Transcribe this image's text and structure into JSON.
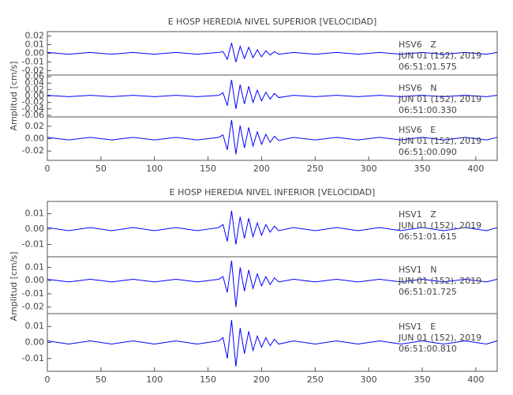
{
  "chart_data": [
    {
      "type": "line",
      "title": "E HOSP HEREDIA NIVEL SUPERIOR [VELOCIDAD]",
      "ylabel": "Amplitud [cm/s]",
      "xlim": [
        0,
        420
      ],
      "xticks": [
        0,
        50,
        100,
        150,
        200,
        250,
        300,
        350,
        400
      ],
      "x": [
        0,
        20,
        40,
        60,
        80,
        100,
        120,
        140,
        160,
        164,
        168,
        172,
        176,
        180,
        184,
        188,
        192,
        196,
        200,
        204,
        208,
        212,
        216,
        230,
        250,
        270,
        290,
        310,
        330,
        350,
        370,
        390,
        410,
        420
      ],
      "series": [
        {
          "name": "HSV6   Z",
          "date": "JUN 01 (152), 2019",
          "time": "06:51:01.575",
          "color": "#0000ff",
          "ylim": [
            -0.025,
            0.025
          ],
          "yticks": [
            -0.02,
            -0.01,
            {
              "value": 0,
              "label": "0.00"
            },
            0.01,
            0.02
          ],
          "values": [
            0.001,
            -0.001,
            0.001,
            -0.001,
            0.001,
            -0.001,
            0.001,
            -0.001,
            0.001,
            0.002,
            -0.007,
            0.012,
            -0.01,
            0.008,
            -0.006,
            0.007,
            -0.005,
            0.004,
            -0.004,
            0.003,
            -0.002,
            0.002,
            -0.001,
            0.001,
            -0.001,
            0.001,
            -0.001,
            0.001,
            -0.001,
            0.001,
            -0.001,
            0.001,
            -0.001,
            0.001
          ]
        },
        {
          "name": "HSV6   N",
          "date": "JUN 01 (152), 2019",
          "time": "06:51:00.330",
          "color": "#0000ff",
          "ylim": [
            -0.065,
            0.065
          ],
          "yticks": [
            -0.06,
            -0.04,
            -0.02,
            {
              "value": 0,
              "label": "0.00"
            },
            0.02,
            0.04,
            0.06
          ],
          "values": [
            0.002,
            -0.002,
            0.002,
            -0.002,
            0.002,
            -0.002,
            0.002,
            -0.002,
            0.002,
            0.01,
            -0.03,
            0.05,
            -0.04,
            0.035,
            -0.025,
            0.03,
            -0.02,
            0.018,
            -0.015,
            0.012,
            -0.01,
            0.008,
            -0.005,
            0.002,
            -0.002,
            0.002,
            -0.002,
            0.002,
            -0.002,
            0.002,
            -0.002,
            0.002,
            -0.002,
            0.002
          ]
        },
        {
          "name": "HSV6   E",
          "date": "JUN 01 (152), 2019",
          "time": "06:51:00.090",
          "color": "#0000ff",
          "ylim": [
            -0.035,
            0.035
          ],
          "yticks": [
            -0.02,
            {
              "value": 0,
              "label": "0.00"
            },
            0.02
          ],
          "values": [
            0.002,
            -0.002,
            0.002,
            -0.002,
            0.002,
            -0.002,
            0.002,
            -0.002,
            0.002,
            0.006,
            -0.018,
            0.03,
            -0.025,
            0.021,
            -0.015,
            0.018,
            -0.012,
            0.011,
            -0.009,
            0.007,
            -0.006,
            0.004,
            -0.003,
            0.002,
            -0.002,
            0.002,
            -0.002,
            0.002,
            -0.002,
            0.002,
            -0.002,
            0.002,
            -0.002,
            0.002
          ]
        }
      ]
    },
    {
      "type": "line",
      "title": "E HOSP HEREDIA NIVEL INFERIOR [VELOCIDAD]",
      "ylabel": "Amplitud [cm/s]",
      "xlim": [
        0,
        420
      ],
      "xticks": [
        0,
        50,
        100,
        150,
        200,
        250,
        300,
        350,
        400
      ],
      "x": [
        0,
        20,
        40,
        60,
        80,
        100,
        120,
        140,
        160,
        164,
        168,
        172,
        176,
        180,
        184,
        188,
        192,
        196,
        200,
        204,
        208,
        212,
        216,
        230,
        250,
        270,
        290,
        310,
        330,
        350,
        370,
        390,
        410,
        420
      ],
      "series": [
        {
          "name": "HSV1   Z",
          "date": "JUN 01 (152), 2019",
          "time": "06:51:01.615",
          "color": "#0000ff",
          "ylim": [
            -0.018,
            0.018
          ],
          "yticks": [
            -0.01,
            {
              "value": 0,
              "label": "0.00"
            },
            0.01
          ],
          "values": [
            0.001,
            -0.001,
            0.001,
            -0.001,
            0.001,
            -0.001,
            0.001,
            -0.001,
            0.001,
            0.003,
            -0.008,
            0.012,
            -0.01,
            0.008,
            -0.006,
            0.007,
            -0.005,
            0.004,
            -0.004,
            0.003,
            -0.002,
            0.002,
            -0.001,
            0.001,
            -0.001,
            0.001,
            -0.001,
            0.001,
            -0.001,
            0.001,
            -0.001,
            0.001,
            -0.001,
            0.001
          ]
        },
        {
          "name": "HSV1   N",
          "date": "JUN 01 (152), 2019",
          "time": "06:51:01.725",
          "color": "#0000ff",
          "ylim": [
            -0.025,
            0.018
          ],
          "yticks": [
            -0.02,
            -0.01,
            {
              "value": 0,
              "label": "0.00"
            },
            0.01
          ],
          "values": [
            0.001,
            -0.001,
            0.001,
            -0.001,
            0.001,
            -0.001,
            0.001,
            -0.001,
            0.001,
            0.003,
            -0.009,
            0.015,
            -0.02,
            0.01,
            -0.008,
            0.008,
            -0.006,
            0.005,
            -0.004,
            0.003,
            -0.003,
            0.002,
            -0.001,
            0.001,
            -0.001,
            0.001,
            -0.001,
            0.001,
            -0.001,
            0.001,
            -0.001,
            0.001,
            -0.001,
            0.001
          ]
        },
        {
          "name": "HSV1   E",
          "date": "JUN 01 (152), 2019",
          "time": "06:51:00.810",
          "color": "#0000ff",
          "ylim": [
            -0.018,
            0.018
          ],
          "yticks": [
            -0.01,
            {
              "value": 0,
              "label": "0.00"
            },
            0.01
          ],
          "values": [
            0.001,
            -0.001,
            0.001,
            -0.001,
            0.001,
            -0.001,
            0.001,
            -0.001,
            0.001,
            0.003,
            -0.01,
            0.014,
            -0.015,
            0.009,
            -0.007,
            0.007,
            -0.005,
            0.004,
            -0.003,
            0.003,
            -0.002,
            0.002,
            -0.001,
            0.001,
            -0.001,
            0.001,
            -0.001,
            0.001,
            -0.001,
            0.001,
            -0.001,
            0.001,
            -0.001,
            0.001
          ]
        }
      ]
    }
  ]
}
